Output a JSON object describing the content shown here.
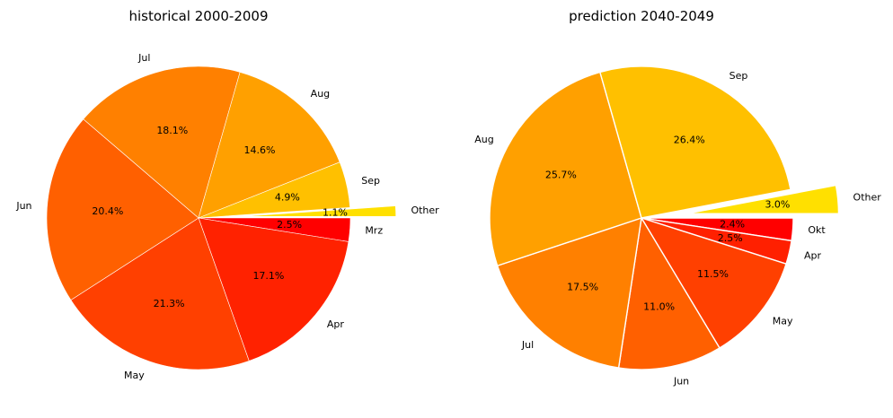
{
  "chart_data": [
    {
      "type": "pie",
      "title": "historical 2000-2009",
      "categories": [
        "Mrz",
        "Apr",
        "May",
        "Jun",
        "Jul",
        "Aug",
        "Sep",
        "Other"
      ],
      "values": [
        2.5,
        17.1,
        21.3,
        20.4,
        18.1,
        14.6,
        4.9,
        1.1
      ],
      "value_labels": [
        "2.5%",
        "17.1%",
        "21.3%",
        "20.4%",
        "18.1%",
        "14.6%",
        "4.9%",
        "1.1%"
      ],
      "colors": [
        "#ff0000",
        "#ff2200",
        "#ff4000",
        "#ff6000",
        "#ff8000",
        "#ffa000",
        "#ffc000",
        "#ffe000"
      ],
      "explode": [
        0,
        0,
        0,
        0,
        0,
        0,
        0,
        0.3
      ],
      "start_angle_deg": 0,
      "direction": "clockwise"
    },
    {
      "type": "pie",
      "title": "prediction 2040-2049",
      "categories": [
        "Okt",
        "Apr",
        "May",
        "Jun",
        "Jul",
        "Aug",
        "Sep",
        "Other"
      ],
      "values": [
        2.4,
        2.5,
        11.5,
        11.0,
        17.5,
        25.7,
        26.4,
        3.0
      ],
      "value_labels": [
        "2.4%",
        "2.5%",
        "11.5%",
        "11.0%",
        "17.5%",
        "25.7%",
        "26.4%",
        "3.0%"
      ],
      "colors": [
        "#ff0000",
        "#ff2000",
        "#ff4000",
        "#ff6000",
        "#ff8000",
        "#ffa000",
        "#ffc000",
        "#ffe000"
      ],
      "explode": [
        0,
        0,
        0,
        0,
        0,
        0,
        0,
        0.3
      ],
      "start_angle_deg": 0,
      "direction": "clockwise"
    }
  ]
}
